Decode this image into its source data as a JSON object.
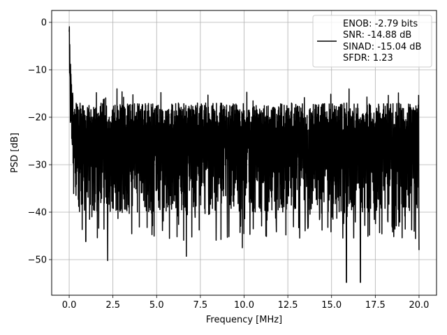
{
  "chart_data": {
    "type": "line",
    "title": "",
    "xlabel": "Frequency [MHz]",
    "ylabel": "PSD [dB]",
    "xlim": [
      -1.0,
      21.0
    ],
    "ylim": [
      -57.5,
      2.5
    ],
    "xticks": [
      0.0,
      2.5,
      5.0,
      7.5,
      10.0,
      12.5,
      15.0,
      17.5,
      20.0
    ],
    "xtick_labels": [
      "0.0",
      "2.5",
      "5.0",
      "7.5",
      "10.0",
      "12.5",
      "15.0",
      "17.5",
      "20.0"
    ],
    "yticks": [
      0,
      -10,
      -20,
      -30,
      -40,
      -50
    ],
    "ytick_labels": [
      "0",
      "−10",
      "−20",
      "−30",
      "−40",
      "−50"
    ],
    "grid": true,
    "legend_position": "top-right",
    "legend_lines": [
      "ENOB: -2.79 bits",
      "SNR: -14.88 dB",
      "SINAD: -15.04 dB",
      "SFDR: 1.23"
    ],
    "line_color": "#000000",
    "series": [
      {
        "freq_range": [
          0.0,
          20.0
        ],
        "shape": "noisy PSD spectrum",
        "peak_db": 0,
        "floor_mean_db": -27,
        "envelope_top_db": -17,
        "envelope_bottom_db": -40,
        "notable_dips": [
          {
            "x": 2.2,
            "y": -50.2
          },
          {
            "x": 6.7,
            "y": -49.3
          },
          {
            "x": 9.9,
            "y": -47.5
          },
          {
            "x": 15.85,
            "y": -54.8
          },
          {
            "x": 16.65,
            "y": -54.8
          },
          {
            "x": 0.95,
            "y": -46.2
          },
          {
            "x": 20.0,
            "y": -48.0
          }
        ]
      }
    ]
  }
}
